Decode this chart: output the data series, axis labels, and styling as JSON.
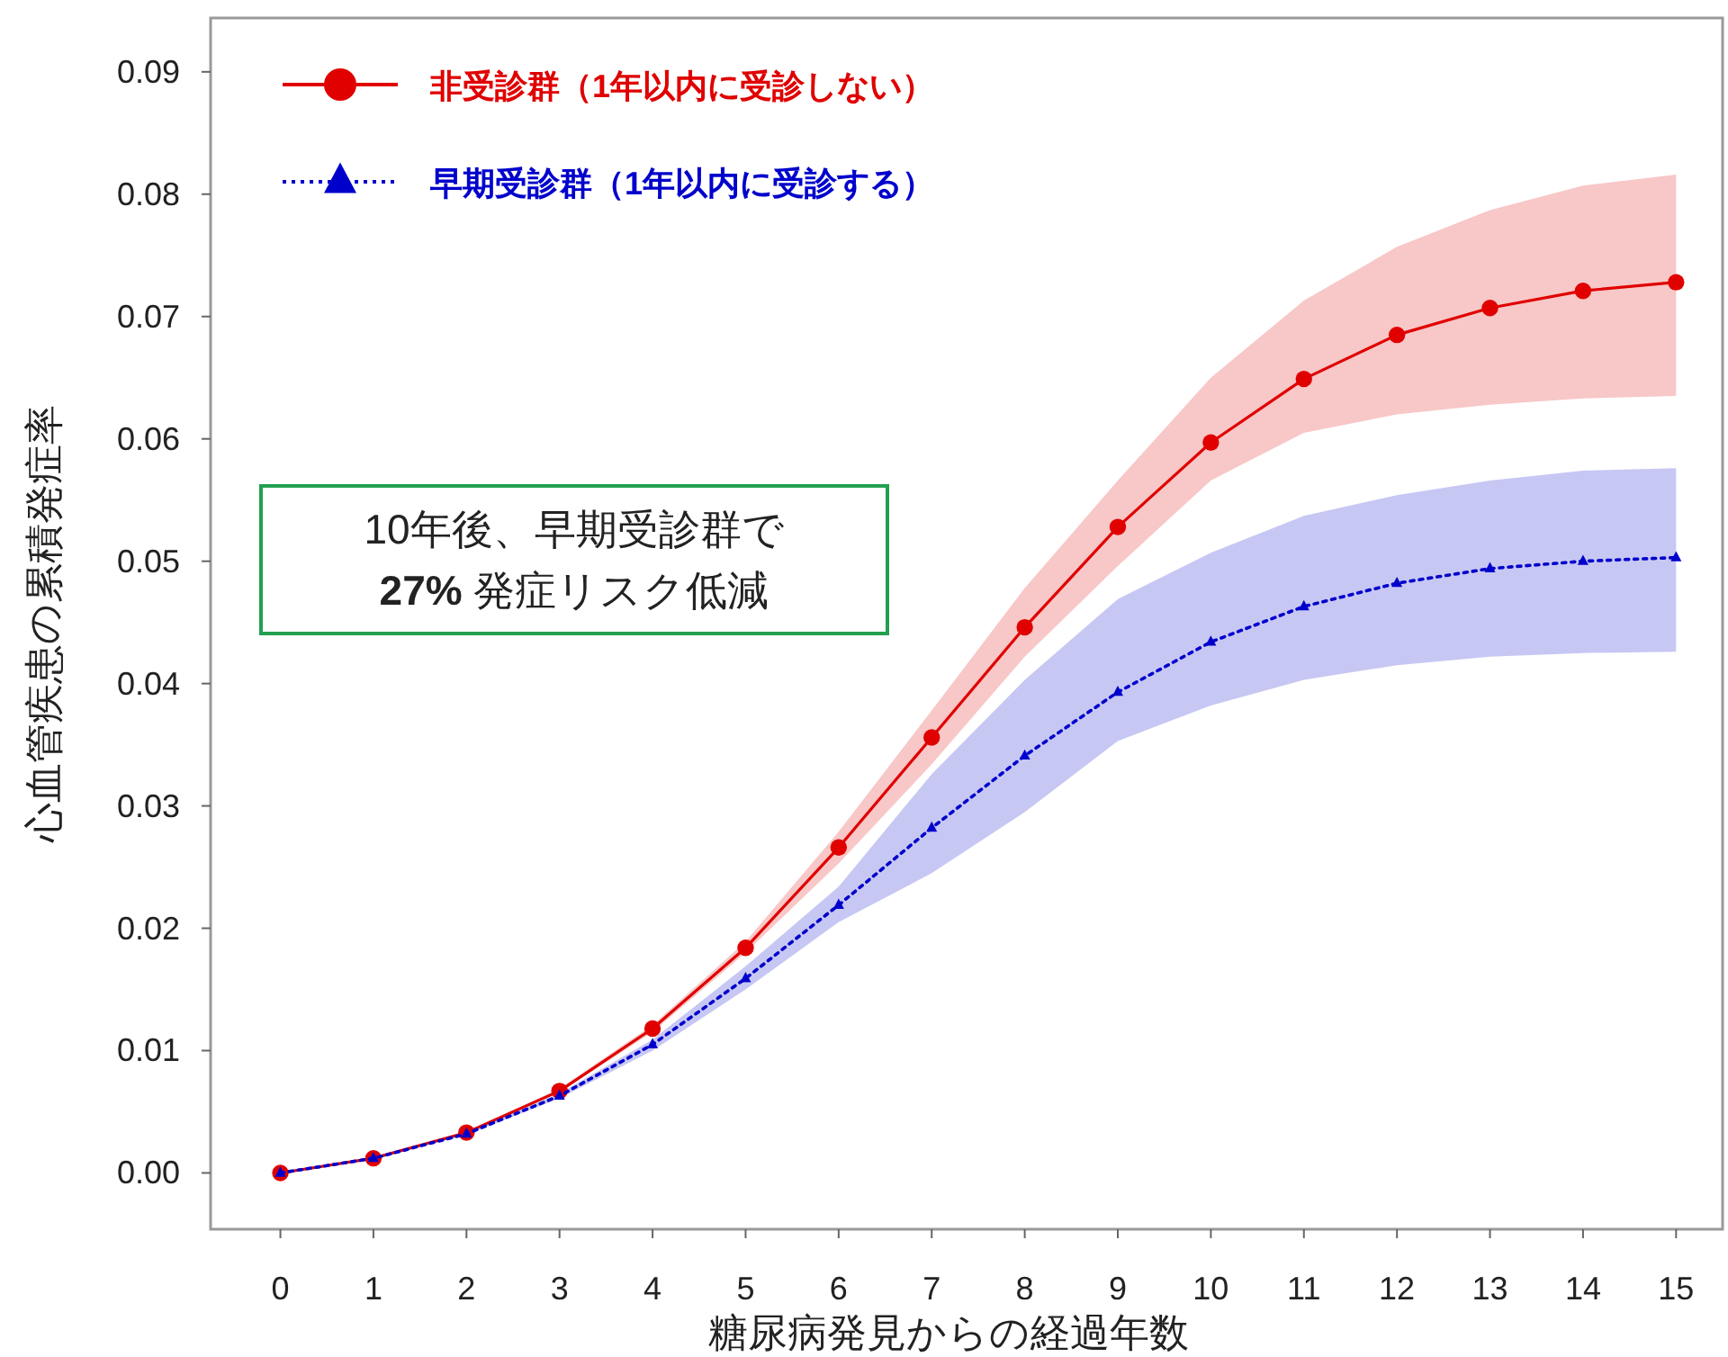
{
  "chart_data": {
    "type": "line",
    "xlabel": "糖尿病発見からの経過年数",
    "ylabel": "心血管疾患の累積発症率",
    "x": [
      0,
      1,
      2,
      3,
      4,
      5,
      6,
      7,
      8,
      9,
      10,
      11,
      12,
      13,
      14,
      15
    ],
    "xlim": [
      -0.75,
      15.5
    ],
    "xticks": [
      0,
      1,
      2,
      3,
      4,
      5,
      6,
      7,
      8,
      9,
      10,
      11,
      12,
      13,
      14,
      15
    ],
    "ylim": [
      -0.0046,
      0.0944
    ],
    "yticks": [
      {
        "value": 0,
        "label": "0.00"
      },
      0.01,
      0.02,
      0.03,
      0.04,
      0.05,
      0.06,
      0.07,
      0.08,
      0.09
    ],
    "legend": "top left",
    "annotations": [
      "10年後、早期受診群で\n**27%** 発症リスク低減"
    ],
    "series": [
      {
        "name": "非受診群（1年以内に受診しない）",
        "color": "#e00000",
        "marker": "circle",
        "line_style": "solid",
        "values": [
          0,
          0.0012,
          0.0033,
          0.0067,
          0.0118,
          0.0184,
          0.0266,
          0.0356,
          0.0446,
          0.0528,
          0.0597,
          0.0649,
          0.0685,
          0.0707,
          0.0721,
          0.0728
        ],
        "lower": [
          0,
          0.0012,
          0.0033,
          0.0066,
          0.0115,
          0.018,
          0.0253,
          0.0334,
          0.0422,
          0.0496,
          0.0566,
          0.0605,
          0.062,
          0.0628,
          0.0633,
          0.0635
        ],
        "upper": [
          0,
          0.0012,
          0.0034,
          0.0069,
          0.0121,
          0.0189,
          0.0279,
          0.0378,
          0.0478,
          0.0566,
          0.065,
          0.0713,
          0.0757,
          0.0787,
          0.0807,
          0.0816
        ]
      },
      {
        "name": "早期受診群（1年以内に受診する）",
        "color": "#0000cc",
        "marker": "triangle",
        "line_style": "dotted",
        "values": [
          0,
          0.0012,
          0.0032,
          0.0063,
          0.0105,
          0.0159,
          0.0219,
          0.0282,
          0.0341,
          0.0393,
          0.0434,
          0.0463,
          0.0482,
          0.0494,
          0.05,
          0.0503
        ],
        "lower": [
          0,
          0.0012,
          0.0031,
          0.0061,
          0.01,
          0.015,
          0.0205,
          0.0245,
          0.0295,
          0.0353,
          0.0382,
          0.0403,
          0.0415,
          0.0422,
          0.0425,
          0.0426
        ],
        "upper": [
          0,
          0.0012,
          0.0033,
          0.0065,
          0.0109,
          0.0169,
          0.0234,
          0.0326,
          0.0403,
          0.0469,
          0.0507,
          0.0537,
          0.0554,
          0.0566,
          0.0574,
          0.0576
        ]
      }
    ]
  }
}
